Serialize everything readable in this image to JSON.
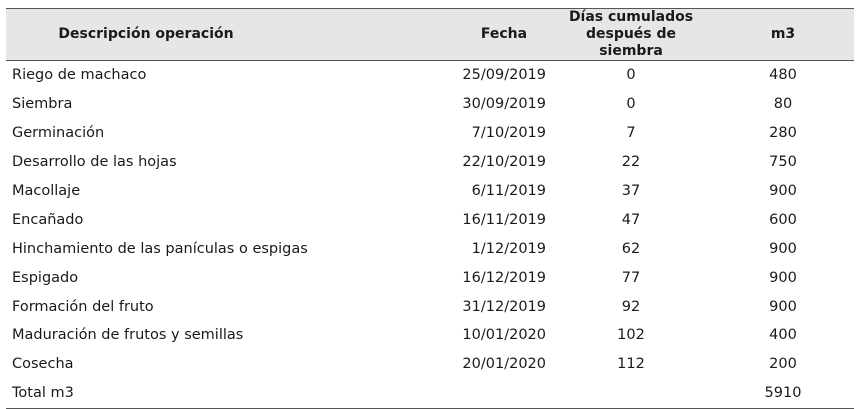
{
  "table": {
    "headers": {
      "descripcion": "Descripción operación",
      "fecha": "Fecha",
      "dias_line1": "Días cumulados",
      "dias_line2": "después de siembra",
      "m3": "m3"
    },
    "rows": [
      {
        "descripcion": "Riego de machaco",
        "fecha": "25/09/2019",
        "dias": "0",
        "m3": "480"
      },
      {
        "descripcion": "Siembra",
        "fecha": "30/09/2019",
        "dias": "0",
        "m3": "80"
      },
      {
        "descripcion": "Germinación",
        "fecha": "7/10/2019",
        "dias": "7",
        "m3": "280"
      },
      {
        "descripcion": "Desarrollo de las hojas",
        "fecha": "22/10/2019",
        "dias": "22",
        "m3": "750"
      },
      {
        "descripcion": "Macollaje",
        "fecha": "6/11/2019",
        "dias": "37",
        "m3": "900"
      },
      {
        "descripcion": "Encañado",
        "fecha": "16/11/2019",
        "dias": "47",
        "m3": "600"
      },
      {
        "descripcion": "Hinchamiento de las panículas o espigas",
        "fecha": "1/12/2019",
        "dias": "62",
        "m3": "900"
      },
      {
        "descripcion": "Espigado",
        "fecha": "16/12/2019",
        "dias": "77",
        "m3": "900"
      },
      {
        "descripcion": "Formación del fruto",
        "fecha": "31/12/2019",
        "dias": "92",
        "m3": "900"
      },
      {
        "descripcion": "Maduración de frutos y semillas",
        "fecha": "10/01/2020",
        "dias": "102",
        "m3": "400"
      },
      {
        "descripcion": "Cosecha",
        "fecha": "20/01/2020",
        "dias": "112",
        "m3": "200"
      }
    ],
    "total": {
      "label": "Total m3",
      "fecha": "",
      "dias": "",
      "m3": "5910"
    }
  }
}
